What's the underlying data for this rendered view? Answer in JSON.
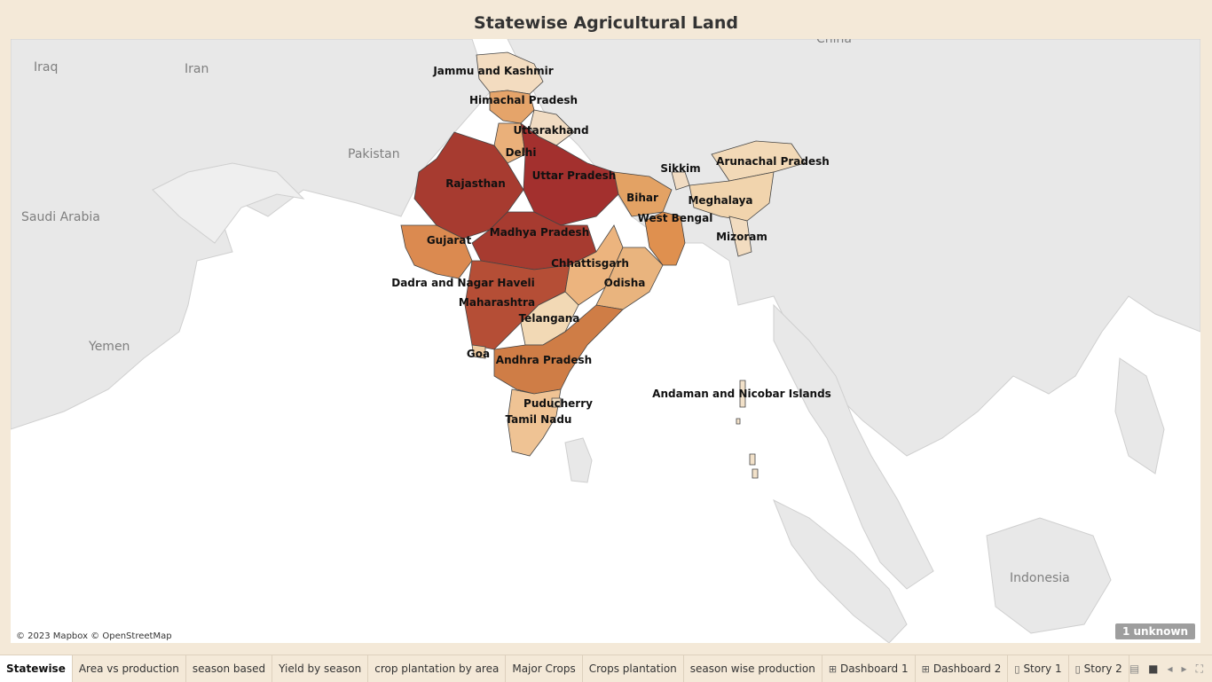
{
  "title": "Statewise Agricultural Land",
  "map": {
    "attribution": "© 2023 Mapbox © OpenStreetMap",
    "unknown_badge": "1 unknown",
    "countries": [
      "Iraq",
      "Iran",
      "China",
      "Pakistan",
      "Saudi Arabia",
      "Yemen",
      "Indonesia"
    ],
    "states": [
      {
        "name": "Jammu and Kashmir",
        "color": "#f3dcc0"
      },
      {
        "name": "Himachal Pradesh",
        "color": "#e5a46a"
      },
      {
        "name": "Uttarakhand",
        "color": "#f1dcc3"
      },
      {
        "name": "Delhi",
        "color": "#eab07a"
      },
      {
        "name": "Uttar Pradesh",
        "color": "#a3302e"
      },
      {
        "name": "Rajasthan",
        "color": "#a73b30"
      },
      {
        "name": "Gujarat",
        "color": "#db8a50"
      },
      {
        "name": "Madhya Pradesh",
        "color": "#a73b30"
      },
      {
        "name": "Maharashtra",
        "color": "#b54e36"
      },
      {
        "name": "Dadra and Nagar Haveli",
        "color": "#efcba0"
      },
      {
        "name": "Goa",
        "color": "#efcba0"
      },
      {
        "name": "Chhattisgarh",
        "color": "#ecb47e"
      },
      {
        "name": "Odisha",
        "color": "#e9b47e"
      },
      {
        "name": "Telangana",
        "color": "#f2d9b5"
      },
      {
        "name": "Andhra Pradesh",
        "color": "#cf7d46"
      },
      {
        "name": "Puducherry",
        "color": "#f1dcbf"
      },
      {
        "name": "Tamil Nadu",
        "color": "#efc394"
      },
      {
        "name": "Bihar",
        "color": "#e3a264"
      },
      {
        "name": "West Bengal",
        "color": "#df904f"
      },
      {
        "name": "Sikkim",
        "color": "#f1dcc3"
      },
      {
        "name": "Arunachal Pradesh",
        "color": "#f2d9b7"
      },
      {
        "name": "Meghalaya",
        "color": "#f1d4ad"
      },
      {
        "name": "Mizoram",
        "color": "#f2dcc0"
      },
      {
        "name": "Andaman and Nicobar Islands",
        "color": "#f2e1c9"
      }
    ]
  },
  "tabs": [
    {
      "label": "Statewise",
      "icon": ""
    },
    {
      "label": "Area vs production",
      "icon": ""
    },
    {
      "label": "season based",
      "icon": ""
    },
    {
      "label": "Yield by season",
      "icon": ""
    },
    {
      "label": "crop plantation by area",
      "icon": ""
    },
    {
      "label": "Major Crops",
      "icon": ""
    },
    {
      "label": "Crops plantation",
      "icon": ""
    },
    {
      "label": "season wise production",
      "icon": ""
    },
    {
      "label": "Dashboard 1",
      "icon": "dashboard-icon"
    },
    {
      "label": "Dashboard 2",
      "icon": "dashboard-icon"
    },
    {
      "label": "Story 1",
      "icon": "story-icon"
    },
    {
      "label": "Story 2",
      "icon": "story-icon"
    }
  ]
}
